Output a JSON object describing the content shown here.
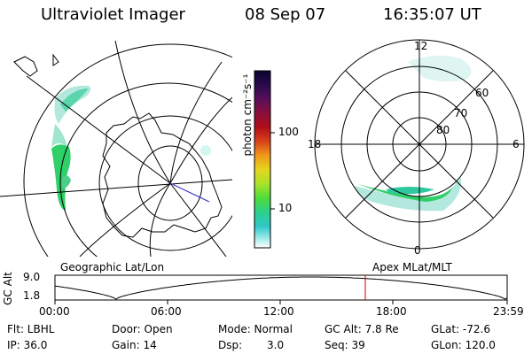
{
  "header": {
    "instrument": "Ultraviolet Imager",
    "date": "08 Sep 07",
    "time": "16:35:07 UT"
  },
  "colorbar": {
    "unit_label": "photon cm⁻²s⁻¹",
    "ticks": [
      "100",
      "10"
    ],
    "colors": [
      "#0a0430",
      "#2a0a4a",
      "#5a0f5a",
      "#8a0f3a",
      "#b30e1a",
      "#d9431b",
      "#f09a1a",
      "#e6d61f",
      "#a8e22a",
      "#4ddc3a",
      "#2ccf8e",
      "#30c8c8",
      "#a6ecec",
      "#ffffff"
    ]
  },
  "geo_panel": {
    "caption": "Geographic Lat/Lon"
  },
  "mag_panel": {
    "caption": "Apex MLat/MLT",
    "mlt_labels": [
      "12",
      "18",
      "6",
      "0"
    ],
    "lat_labels": [
      "60",
      "70",
      "80"
    ]
  },
  "altitude_plot": {
    "ylabel": "GC Alt",
    "yticks": [
      "9.0",
      "1.8"
    ],
    "xticks": [
      "00:00",
      "06:00",
      "12:00",
      "18:00",
      "23:59"
    ]
  },
  "info": {
    "flt": "Flt: LBHL",
    "ip": "IP: 36.0",
    "door": "Door: Open",
    "gain": "Gain: 14",
    "mode": "Mode: Normal",
    "dsp_label": "Dsp:",
    "dsp_value": "3.0",
    "gc_alt": "GC Alt: 7.8 Re",
    "seq": "Seq: 39",
    "glat": "GLat: -72.6",
    "glon": "GLon: 120.0"
  },
  "accent_colors": {
    "aurora_green": "#2fcf6a",
    "aurora_cyan": "#7fe0d0",
    "marker_red": "#cc0000",
    "radial_blue": "#3030c0"
  }
}
